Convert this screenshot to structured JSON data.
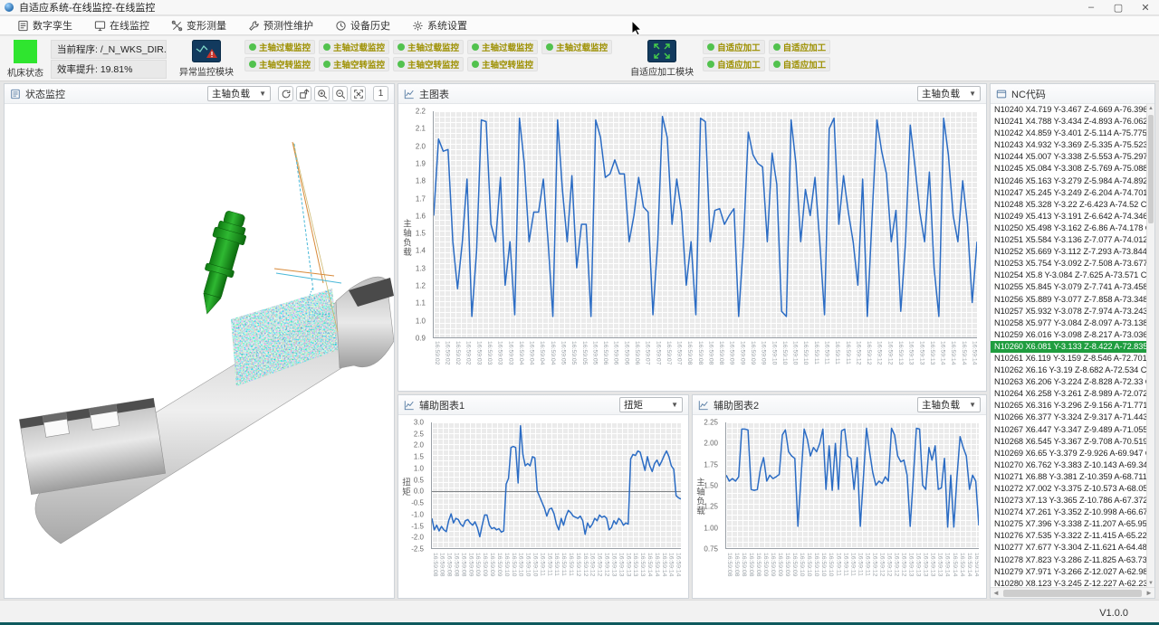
{
  "window": {
    "title": "自适应系统-在线监控-在线监控",
    "controls": {
      "minimize": "–",
      "maximize": "▢",
      "close": "✕"
    },
    "version": "V1.0.0"
  },
  "menu": {
    "items": [
      {
        "id": "digital-twin",
        "label": "数字孪生",
        "icon": "document-icon"
      },
      {
        "id": "online-monitor",
        "label": "在线监控",
        "icon": "monitor-icon"
      },
      {
        "id": "deform-measure",
        "label": "变形测量",
        "icon": "measure-icon"
      },
      {
        "id": "predictive-maintenance",
        "label": "预测性维护",
        "icon": "wrench-icon"
      },
      {
        "id": "device-history",
        "label": "设备历史",
        "icon": "history-icon"
      },
      {
        "id": "system-settings",
        "label": "系统设置",
        "icon": "gear-icon"
      }
    ]
  },
  "toolbar": {
    "machine_status_label": "机床状态",
    "machine_status_color": "#2fe52f",
    "current_program": "当前程序: /_N_WKS_DIR...",
    "efficiency": "效率提升: 19.81%",
    "anomaly_module_label": "异常监控模块",
    "adaptive_module_label": "自适应加工模块",
    "indicator_color": "#52c24e",
    "button_text_color": "#9d9000",
    "overload_buttons": [
      "主轴过载监控",
      "主轴过载监控",
      "主轴过载监控",
      "主轴过载监控",
      "主轴过载监控"
    ],
    "idle_buttons": [
      "主轴空转监控",
      "主轴空转监控",
      "主轴空转监控",
      "主轴空转监控"
    ],
    "adaptive_buttons_row1": [
      "自适应加工",
      "自适应加工"
    ],
    "adaptive_buttons_row2": [
      "自适应加工",
      "自适应加工"
    ]
  },
  "viewer": {
    "title": "状态监控",
    "dropdown_value": "主轴负载",
    "zoom_level": "1",
    "tool_icons": [
      "reset-view-icon",
      "rotate-view-icon",
      "zoom-in-icon",
      "zoom-out-icon",
      "fit-view-icon"
    ]
  },
  "nc_panel": {
    "title": "NC代码",
    "selected_index": 20,
    "lines": [
      "N10240 X4.719 Y-3.467 Z-4.669 A-76.396",
      "N10241 X4.788 Y-3.434 Z-4.893 A-76.062",
      "N10242 X4.859 Y-3.401 Z-5.114 A-75.775",
      "N10243 X4.932 Y-3.369 Z-5.335 A-75.523",
      "N10244 X5.007 Y-3.338 Z-5.553 A-75.297",
      "N10245 X5.084 Y-3.308 Z-5.769 A-75.088",
      "N10246 X5.163 Y-3.279 Z-5.984 A-74.892",
      "N10247 X5.245 Y-3.249 Z-6.204 A-74.701",
      "N10248 X5.328 Y-3.22 Z-6.423 A-74.52 C",
      "N10249 X5.413 Y-3.191 Z-6.642 A-74.346",
      "N10250 X5.498 Y-3.162 Z-6.86 A-74.178 C",
      "N10251 X5.584 Y-3.136 Z-7.077 A-74.012",
      "N10252 X5.669 Y-3.112 Z-7.293 A-73.844",
      "N10253 X5.754 Y-3.092 Z-7.508 A-73.677",
      "N10254 X5.8 Y-3.084 Z-7.625 A-73.571 C",
      "N10255 X5.845 Y-3.079 Z-7.741 A-73.458",
      "N10256 X5.889 Y-3.077 Z-7.858 A-73.348",
      "N10257 X5.932 Y-3.078 Z-7.974 A-73.243",
      "N10258 X5.977 Y-3.084 Z-8.097 A-73.138",
      "N10259 X6.016 Y-3.098 Z-8.217 A-73.036",
      "N10260 X6.081 Y-3.133 Z-8.422 A-72.835",
      "N10261 X6.119 Y-3.159 Z-8.546 A-72.701",
      "N10262 X6.16 Y-3.19 Z-8.682 A-72.534 C",
      "N10263 X6.206 Y-3.224 Z-8.828 A-72.33 C",
      "N10264 X6.258 Y-3.261 Z-8.989 A-72.072",
      "N10265 X6.316 Y-3.296 Z-9.156 A-71.771",
      "N10266 X6.377 Y-3.324 Z-9.317 A-71.443",
      "N10267 X6.447 Y-3.347 Z-9.489 A-71.055",
      "N10268 X6.545 Y-3.367 Z-9.708 A-70.519",
      "N10269 X6.65 Y-3.379 Z-9.926 A-69.947 C",
      "N10270 X6.762 Y-3.383 Z-10.143 A-69.34",
      "N10271 X6.88 Y-3.381 Z-10.359 A-68.711",
      "N10272 X7.002 Y-3.375 Z-10.573 A-68.05",
      "N10273 X7.13 Y-3.365 Z-10.786 A-67.372",
      "N10274 X7.261 Y-3.352 Z-10.998 A-66.67",
      "N10275 X7.396 Y-3.338 Z-11.207 A-65.95",
      "N10276 X7.535 Y-3.322 Z-11.415 A-65.22",
      "N10277 X7.677 Y-3.304 Z-11.621 A-64.48",
      "N10278 X7.823 Y-3.286 Z-11.825 A-63.73",
      "N10279 X7.971 Y-3.266 Z-12.027 A-62.98",
      "N10280 X8.123 Y-3.245 Z-12.227 A-62.23"
    ]
  },
  "charts": {
    "main": {
      "type": "line",
      "title": "主图表",
      "dropdown_value": "主轴负载",
      "ylabel": "主轴负载",
      "ymin": 0.9,
      "ymax": 2.2,
      "line_color": "#2b6cc4",
      "yticks": [
        "2.2",
        "2.1",
        "2.0",
        "1.9",
        "1.8",
        "1.7",
        "1.6",
        "1.5",
        "1.4",
        "1.3",
        "1.2",
        "1.1",
        "1.0",
        "0.9"
      ],
      "xlabels": [
        "16:59:02",
        "16:59:02",
        "16:59:02",
        "16:59:02",
        "16:59:03",
        "16:59:03",
        "16:59:03",
        "16:59:03",
        "16:59:04",
        "16:59:04",
        "16:59:04",
        "16:59:04",
        "16:59:05",
        "16:59:05",
        "16:59:05",
        "16:59:05",
        "16:59:06",
        "16:59:06",
        "16:59:06",
        "16:59:06",
        "16:59:07",
        "16:59:07",
        "16:59:07",
        "16:59:07",
        "16:59:08",
        "16:59:08",
        "16:59:08",
        "16:59:08",
        "16:59:09",
        "16:59:09",
        "16:59:09",
        "16:59:09",
        "16:59:10",
        "16:59:10",
        "16:59:10",
        "16:59:10",
        "16:59:11",
        "16:59:11",
        "16:59:11",
        "16:59:11",
        "16:59:12",
        "16:59:12",
        "16:59:12",
        "16:59:12",
        "16:59:13",
        "16:59:13",
        "16:59:13",
        "16:59:13",
        "16:59:14",
        "16:59:14",
        "16:59:14",
        "16:59:14"
      ],
      "values": [
        1.6,
        2.04,
        1.97,
        1.98,
        1.45,
        1.18,
        1.45,
        1.81,
        1.02,
        1.4,
        2.15,
        2.14,
        1.55,
        1.45,
        1.82,
        1.2,
        1.45,
        1.03,
        2.16,
        1.9,
        1.45,
        1.62,
        1.62,
        1.81,
        1.45,
        1.02,
        2.15,
        1.75,
        1.45,
        1.83,
        1.3,
        1.55,
        1.55,
        1.02,
        2.15,
        2.05,
        1.82,
        1.84,
        1.92,
        1.84,
        1.84,
        1.45,
        1.6,
        1.82,
        1.65,
        1.62,
        1.03,
        1.45,
        2.17,
        2.05,
        1.55,
        1.81,
        1.62,
        1.2,
        1.45,
        1.03,
        2.16,
        2.14,
        1.45,
        1.63,
        1.64,
        1.55,
        1.6,
        1.64,
        1.02,
        1.45,
        2.08,
        1.95,
        1.9,
        1.88,
        1.45,
        1.96,
        1.78,
        1.05,
        1.02,
        2.15,
        1.9,
        1.45,
        1.75,
        1.6,
        1.82,
        1.45,
        1.03,
        2.1,
        2.16,
        1.55,
        1.83,
        1.62,
        1.45,
        1.2,
        1.81,
        1.02,
        1.6,
        2.15,
        1.97,
        1.84,
        1.45,
        1.63,
        1.05,
        1.45,
        2.12,
        1.88,
        1.62,
        1.45,
        1.85,
        1.3,
        1.02,
        2.16,
        1.95,
        1.6,
        1.45,
        1.8,
        1.55,
        1.1,
        1.45
      ]
    },
    "aux1": {
      "type": "line",
      "title": "辅助图表1",
      "dropdown_value": "扭矩",
      "ylabel": "扭矩",
      "ymin": -2.5,
      "ymax": 3.0,
      "zero": 0,
      "line_color": "#2b6cc4",
      "yticks": [
        "3.0",
        "2.5",
        "2.0",
        "1.5",
        "1.0",
        "0.5",
        "0.0",
        "-0.5",
        "-1.0",
        "-1.5",
        "-2.0",
        "-2.5"
      ],
      "xlabels": [
        "16:59:08",
        "16:59:08",
        "16:59:08",
        "16:59:08",
        "16:59:08",
        "16:59:09",
        "16:59:09",
        "16:59:09",
        "16:59:09",
        "16:59:09",
        "16:59:10",
        "16:59:10",
        "16:59:10",
        "16:59:10",
        "16:59:10",
        "16:59:11",
        "16:59:11",
        "16:59:11",
        "16:59:11",
        "16:59:11",
        "16:59:12",
        "16:59:12",
        "16:59:12",
        "16:59:12",
        "16:59:12",
        "16:59:13",
        "16:59:13",
        "16:59:13",
        "16:59:13",
        "16:59:13",
        "16:59:14",
        "16:59:14",
        "16:59:14",
        "16:59:14",
        "16:59:14"
      ],
      "values": [
        -1.2,
        -1.7,
        -1.5,
        -1.75,
        -1.55,
        -1.7,
        -1.78,
        -1.3,
        -1.0,
        -1.4,
        -1.2,
        -1.25,
        -1.45,
        -1.55,
        -1.3,
        -1.25,
        -1.4,
        -1.5,
        -1.35,
        -1.6,
        -2.0,
        -1.5,
        -1.05,
        -1.05,
        -1.5,
        -1.65,
        -1.6,
        -1.7,
        -1.65,
        -1.8,
        -1.75,
        0.3,
        0.55,
        1.9,
        1.95,
        1.9,
        0.35,
        2.85,
        1.6,
        1.1,
        1.2,
        1.1,
        1.5,
        1.45,
        0.0,
        -0.25,
        -0.5,
        -0.75,
        -1.1,
        -0.8,
        -0.75,
        -1.0,
        -1.45,
        -1.7,
        -1.2,
        -1.5,
        -1.1,
        -0.85,
        -0.95,
        -1.1,
        -1.15,
        -1.2,
        -1.1,
        -1.3,
        -1.9,
        -1.4,
        -1.6,
        -1.45,
        -1.2,
        -1.3,
        -1.05,
        -1.15,
        -1.1,
        -1.2,
        -1.7,
        -1.6,
        -1.3,
        -1.45,
        -1.2,
        -1.3,
        -1.5,
        -1.4,
        -1.45,
        1.4,
        1.6,
        1.55,
        1.75,
        1.7,
        1.3,
        0.9,
        1.5,
        1.1,
        0.85,
        1.2,
        1.35,
        1.1,
        1.3,
        1.55,
        1.75,
        1.5,
        1.1,
        0.95,
        -0.2,
        -0.3,
        -0.35
      ]
    },
    "aux2": {
      "type": "line",
      "title": "辅助图表2",
      "dropdown_value": "主轴负载",
      "ylabel": "主轴负载",
      "ymin": 0.75,
      "ymax": 2.25,
      "line_color": "#2b6cc4",
      "yticks": [
        "2.25",
        "2.00",
        "1.75",
        "1.50",
        "1.25",
        "1.00",
        "0.75"
      ],
      "xlabels": [
        "16:59:08",
        "16:59:08",
        "16:59:08",
        "16:59:08",
        "16:59:08",
        "16:59:09",
        "16:59:09",
        "16:59:09",
        "16:59:09",
        "16:59:09",
        "16:59:10",
        "16:59:10",
        "16:59:10",
        "16:59:10",
        "16:59:10",
        "16:59:11",
        "16:59:11",
        "16:59:11",
        "16:59:11",
        "16:59:11",
        "16:59:12",
        "16:59:12",
        "16:59:12",
        "16:59:12",
        "16:59:12",
        "16:59:13",
        "16:59:13",
        "16:59:13",
        "16:59:13",
        "16:59:13",
        "16:59:14",
        "16:59:14",
        "16:59:14",
        "16:59:14",
        "16:59:14"
      ],
      "values": [
        1.62,
        1.55,
        1.58,
        1.55,
        1.6,
        2.17,
        2.17,
        2.16,
        1.45,
        1.44,
        1.45,
        1.7,
        1.83,
        1.55,
        1.62,
        1.58,
        1.6,
        1.63,
        2.1,
        2.16,
        1.9,
        1.85,
        1.82,
        1.01,
        1.6,
        2.17,
        2.05,
        1.85,
        1.95,
        1.9,
        2.0,
        2.17,
        1.45,
        1.97,
        1.44,
        2.0,
        1.45,
        2.15,
        2.17,
        1.85,
        1.82,
        1.45,
        1.83,
        1.01,
        1.6,
        2.18,
        1.9,
        1.65,
        1.5,
        1.55,
        1.52,
        1.6,
        1.55,
        2.18,
        2.1,
        1.85,
        1.78,
        1.8,
        1.62,
        1.01,
        1.6,
        2.18,
        2.17,
        1.5,
        1.45,
        1.95,
        1.8,
        1.97,
        1.45,
        1.47,
        1.82,
        1.0,
        1.62,
        1.0,
        1.6,
        2.08,
        1.95,
        1.85,
        1.45,
        1.62,
        1.55,
        1.02
      ]
    }
  }
}
